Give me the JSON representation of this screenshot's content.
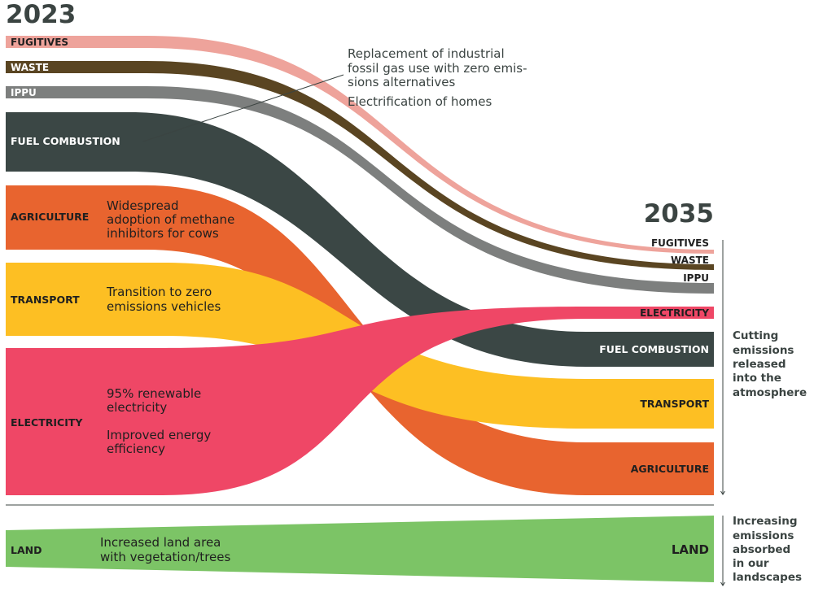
{
  "years": {
    "start": "2023",
    "end": "2035"
  },
  "colors": {
    "fugitives": "#eea39b",
    "waste": "#5a4522",
    "ippu": "#7d7f7e",
    "fuel_combustion": "#3b4745",
    "agriculture": "#e8642f",
    "transport": "#fdbf23",
    "electricity": "#ef4766",
    "land": "#7cc466",
    "text_dark": "#3b4442"
  },
  "left_labels": {
    "fugitives": "FUGITIVES",
    "waste": "WASTE",
    "ippu": "IPPU",
    "fuel_combustion": "FUEL COMBUSTION",
    "agriculture": "AGRICULTURE",
    "transport": "TRANSPORT",
    "electricity": "ELECTRICITY",
    "land": "LAND"
  },
  "right_labels": {
    "fugitives": "FUGITIVES",
    "waste": "WASTE",
    "ippu": "IPPU",
    "electricity": "ELECTRICITY",
    "fuel_combustion": "FUEL COMBUSTION",
    "transport": "TRANSPORT",
    "agriculture": "AGRICULTURE",
    "land": "LAND"
  },
  "notes": {
    "industrial": [
      "Replacement of industrial",
      "fossil gas use with zero emis-",
      "sions alternatives"
    ],
    "homes": "Electrification of homes",
    "agriculture": [
      "Widespread",
      "adoption of methane",
      "inhibitors for cows"
    ],
    "transport": [
      "Transition to zero",
      "emissions vehicles"
    ],
    "renewable": [
      "95% renewable",
      "electricity"
    ],
    "efficiency": [
      "Improved energy",
      "efficiency"
    ],
    "land": [
      "Increased land area",
      "with vegetation/trees"
    ]
  },
  "side_notes": {
    "emissions": [
      "Cutting",
      "emissions",
      "released",
      "into the",
      "atmosphere"
    ],
    "absorbed": [
      "Increasing",
      "emissions",
      "absorbed",
      "in our",
      "landscapes"
    ]
  }
}
